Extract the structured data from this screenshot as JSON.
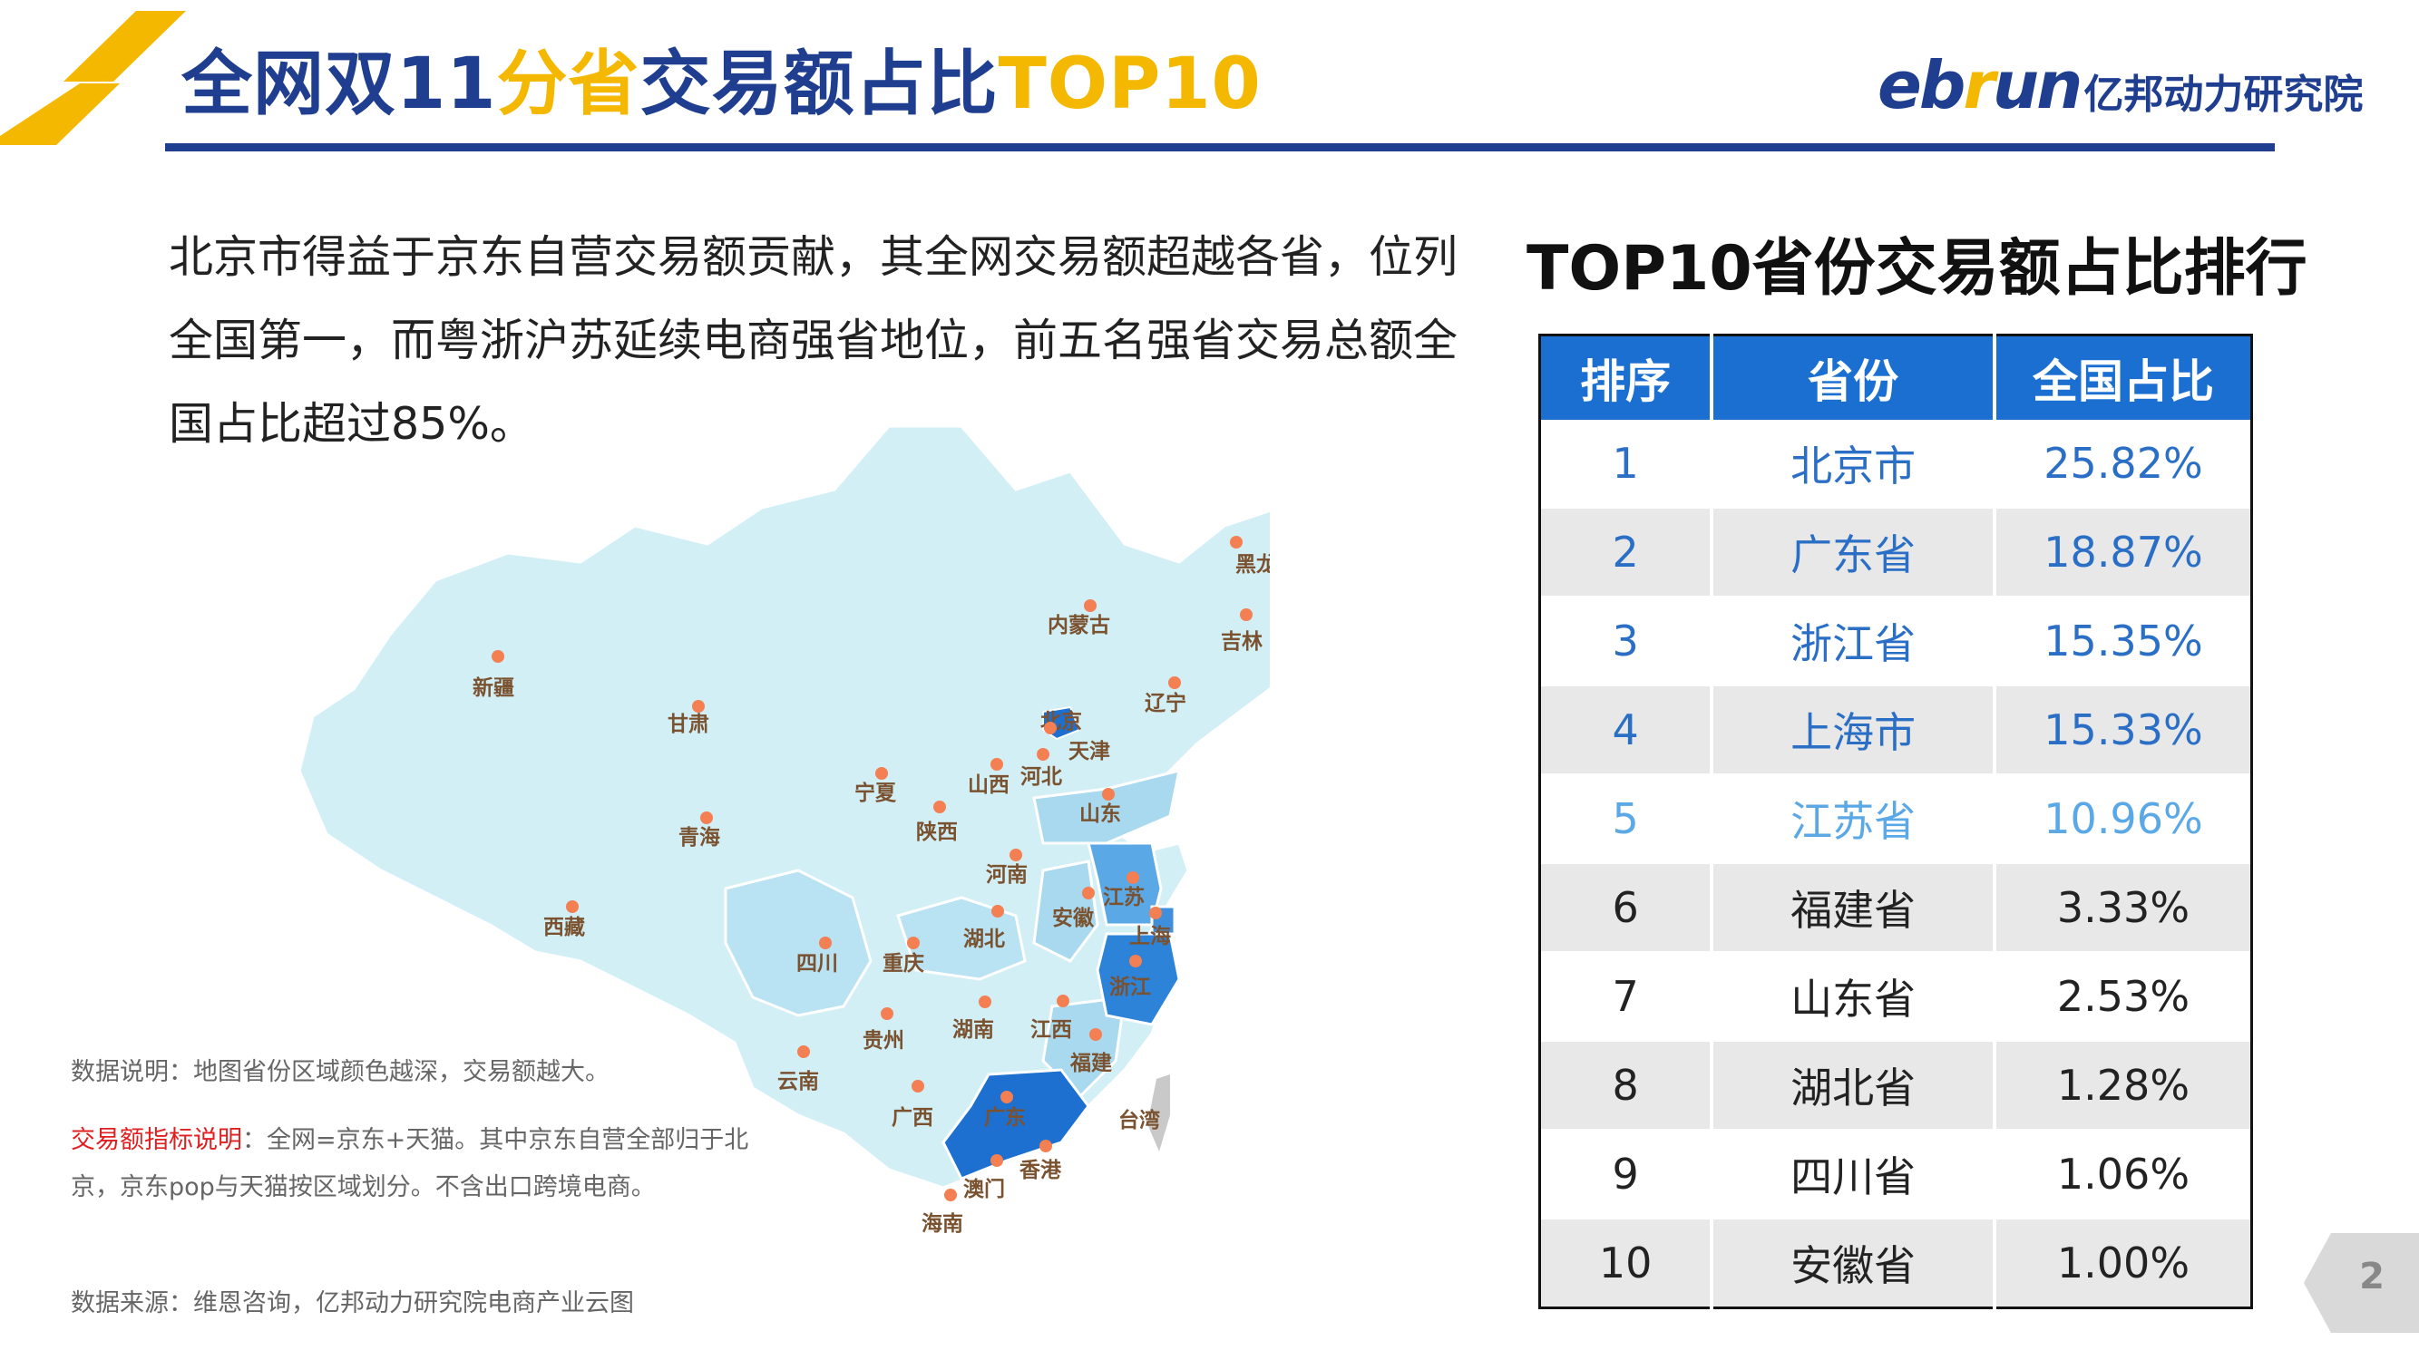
{
  "header": {
    "title_part1": "全网双11",
    "title_highlight": "分省",
    "title_part2": "交易额占比",
    "title_highlight2": "TOP10",
    "brand_word_a": "eb",
    "brand_word_b": "r",
    "brand_word_c": "un",
    "brand_name": "亿邦动力研究院",
    "accent_color": "#f5b800",
    "primary_color": "#1f3e8f"
  },
  "summary": "北京市得益于京东自营交易额贡献，其全网交易额超越各省，位列全国第一，而粤浙沪苏延续电商强省地位，前五名强省交易总额全国占比超过85%。",
  "map": {
    "provinces": [
      "黑龙江",
      "内蒙古",
      "吉林",
      "新疆",
      "辽宁",
      "甘肃",
      "北京",
      "天津",
      "宁夏",
      "山西",
      "河北",
      "山东",
      "青海",
      "陕西",
      "河南",
      "江苏",
      "西藏",
      "安徽",
      "上海",
      "四川",
      "重庆",
      "湖北",
      "浙江",
      "贵州",
      "湖南",
      "江西",
      "福建",
      "云南",
      "台湾",
      "广西",
      "广东",
      "香港",
      "澳门",
      "海南"
    ]
  },
  "notes": {
    "data_note": "数据说明：地图省份区域颜色越深，交易额越大。",
    "metric_label": "交易额指标说明",
    "metric_text": "：全网=京东+天猫。其中京东自营全部归于北京，京东pop与天猫按区域划分。不含出口跨境电商。",
    "source": "数据来源：维恩咨询，亿邦动力研究院电商产业云图"
  },
  "table": {
    "title": "TOP10省份交易额占比排行",
    "headers": [
      "排序",
      "省份",
      "全国占比"
    ],
    "rows": [
      {
        "rank": "1",
        "province": "北京市",
        "share": "25.82%"
      },
      {
        "rank": "2",
        "province": "广东省",
        "share": "18.87%"
      },
      {
        "rank": "3",
        "province": "浙江省",
        "share": "15.35%"
      },
      {
        "rank": "4",
        "province": "上海市",
        "share": "15.33%"
      },
      {
        "rank": "5",
        "province": "江苏省",
        "share": "10.96%"
      },
      {
        "rank": "6",
        "province": "福建省",
        "share": "3.33%"
      },
      {
        "rank": "7",
        "province": "山东省",
        "share": "2.53%"
      },
      {
        "rank": "8",
        "province": "湖北省",
        "share": "1.28%"
      },
      {
        "rank": "9",
        "province": "四川省",
        "share": "1.06%"
      },
      {
        "rank": "10",
        "province": "安徽省",
        "share": "1.00%"
      }
    ]
  },
  "page_number": "2"
}
